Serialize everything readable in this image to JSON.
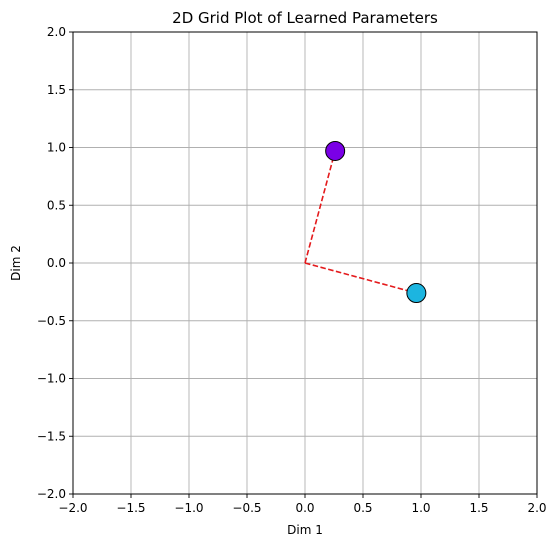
{
  "chart_data": {
    "type": "scatter",
    "title": "2D Grid Plot of Learned Parameters",
    "xlabel": "Dim 1",
    "ylabel": "Dim 2",
    "xlim": [
      -2.0,
      2.0
    ],
    "ylim": [
      -2.0,
      2.0
    ],
    "xticks": [
      "−2.0",
      "−1.5",
      "−1.0",
      "−0.5",
      "0.0",
      "0.5",
      "1.0",
      "1.5",
      "2.0"
    ],
    "yticks": [
      "−2.0",
      "−1.5",
      "−1.0",
      "−0.5",
      "0.0",
      "0.5",
      "1.0",
      "1.5",
      "2.0"
    ],
    "tick_values": [
      -2.0,
      -1.5,
      -1.0,
      -0.5,
      0.0,
      0.5,
      1.0,
      1.5,
      2.0
    ],
    "grid": true,
    "origin": [
      0,
      0
    ],
    "points": [
      {
        "x": 0.26,
        "y": 0.97,
        "color": "#7a00e6"
      },
      {
        "x": 0.96,
        "y": -0.26,
        "color": "#1cb5e0"
      }
    ],
    "line_color": "#e41a1c"
  }
}
